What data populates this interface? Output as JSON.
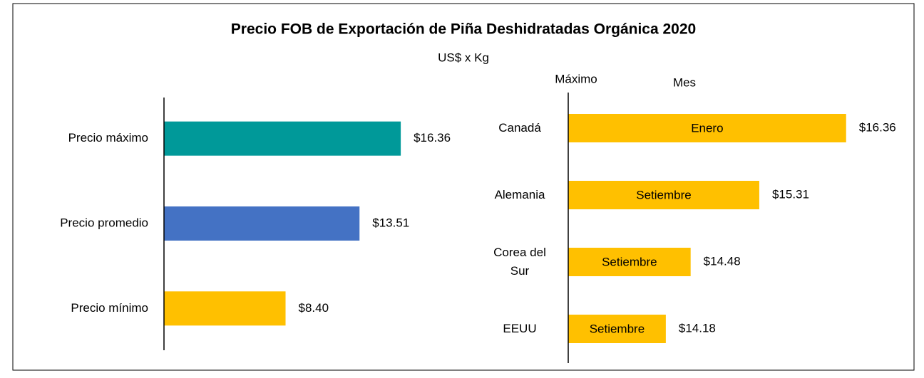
{
  "title": "Precio FOB de Exportación de Piña Deshidratadas Orgánica 2020",
  "subtitle": "US$ x Kg",
  "chart_data": [
    {
      "type": "bar",
      "categories": [
        "Precio máximo",
        "Precio promedio",
        "Precio mínimo"
      ],
      "values": [
        16.36,
        13.51,
        8.4
      ],
      "value_labels": [
        "$16.36",
        "$13.51",
        "$8.40"
      ],
      "colors": [
        "#009999",
        "#4472c4",
        "#ffc000"
      ],
      "xlim": [
        0,
        20
      ]
    },
    {
      "type": "bar",
      "column_headers": [
        "Máximo",
        "Mes"
      ],
      "categories": [
        "Canadá",
        "Alemania",
        "Corea del Sur",
        "EEUU"
      ],
      "values": [
        16.36,
        15.31,
        14.48,
        14.18
      ],
      "value_labels": [
        "$16.36",
        "$15.31",
        "$14.48",
        "$14.18"
      ],
      "annotations": [
        "Enero",
        "Setiembre",
        "Setiembre",
        "Setiembre"
      ],
      "colors": [
        "#ffc000",
        "#ffc000",
        "#ffc000",
        "#ffc000"
      ],
      "xlim": [
        13,
        17
      ]
    }
  ]
}
